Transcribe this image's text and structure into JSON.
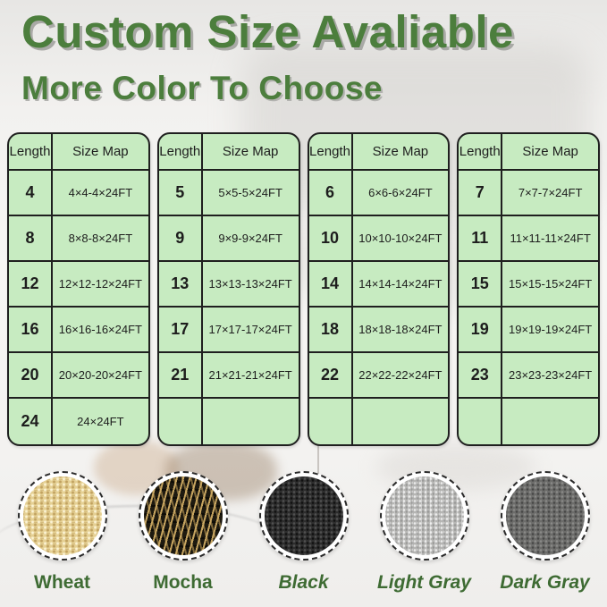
{
  "title": "Custom Size Avaliable",
  "subtitle": "More Color To Choose",
  "theme": {
    "accent_green": "#4c7e3d",
    "label_green": "#3e6b33",
    "table_bg": "#c7ebc1",
    "table_border": "#1f1f1f"
  },
  "tables": [
    {
      "headers": [
        "Length",
        "Size Map"
      ],
      "rows": [
        [
          "4",
          "4×4-4×24FT"
        ],
        [
          "8",
          "8×8-8×24FT"
        ],
        [
          "12",
          "12×12-12×24FT"
        ],
        [
          "16",
          "16×16-16×24FT"
        ],
        [
          "20",
          "20×20-20×24FT"
        ],
        [
          "24",
          "24×24FT"
        ]
      ]
    },
    {
      "headers": [
        "Length",
        "Size Map"
      ],
      "rows": [
        [
          "5",
          "5×5-5×24FT"
        ],
        [
          "9",
          "9×9-9×24FT"
        ],
        [
          "13",
          "13×13-13×24FT"
        ],
        [
          "17",
          "17×17-17×24FT"
        ],
        [
          "21",
          "21×21-21×24FT"
        ],
        [
          "",
          ""
        ]
      ]
    },
    {
      "headers": [
        "Length",
        "Size Map"
      ],
      "rows": [
        [
          "6",
          "6×6-6×24FT"
        ],
        [
          "10",
          "10×10-10×24FT"
        ],
        [
          "14",
          "14×14-14×24FT"
        ],
        [
          "18",
          "18×18-18×24FT"
        ],
        [
          "22",
          "22×22-22×24FT"
        ],
        [
          "",
          ""
        ]
      ]
    },
    {
      "headers": [
        "Length",
        "Size Map"
      ],
      "rows": [
        [
          "7",
          "7×7-7×24FT"
        ],
        [
          "11",
          "11×11-11×24FT"
        ],
        [
          "15",
          "15×15-15×24FT"
        ],
        [
          "19",
          "19×19-19×24FT"
        ],
        [
          "23",
          "23×23-23×24FT"
        ],
        [
          "",
          ""
        ]
      ]
    }
  ],
  "swatches": [
    {
      "label": "Wheat",
      "slug": "wheat",
      "italic": false,
      "base_color": "#e5d094"
    },
    {
      "label": "Mocha",
      "slug": "mocha",
      "italic": false,
      "base_color": "#2a2417"
    },
    {
      "label": "Black",
      "slug": "black",
      "italic": true,
      "base_color": "#2d2d2d"
    },
    {
      "label": "Light Gray",
      "slug": "light-gray",
      "italic": true,
      "base_color": "#b6b6b4"
    },
    {
      "label": "Dark Gray",
      "slug": "dark-gray",
      "italic": true,
      "base_color": "#6c6c6a"
    }
  ]
}
